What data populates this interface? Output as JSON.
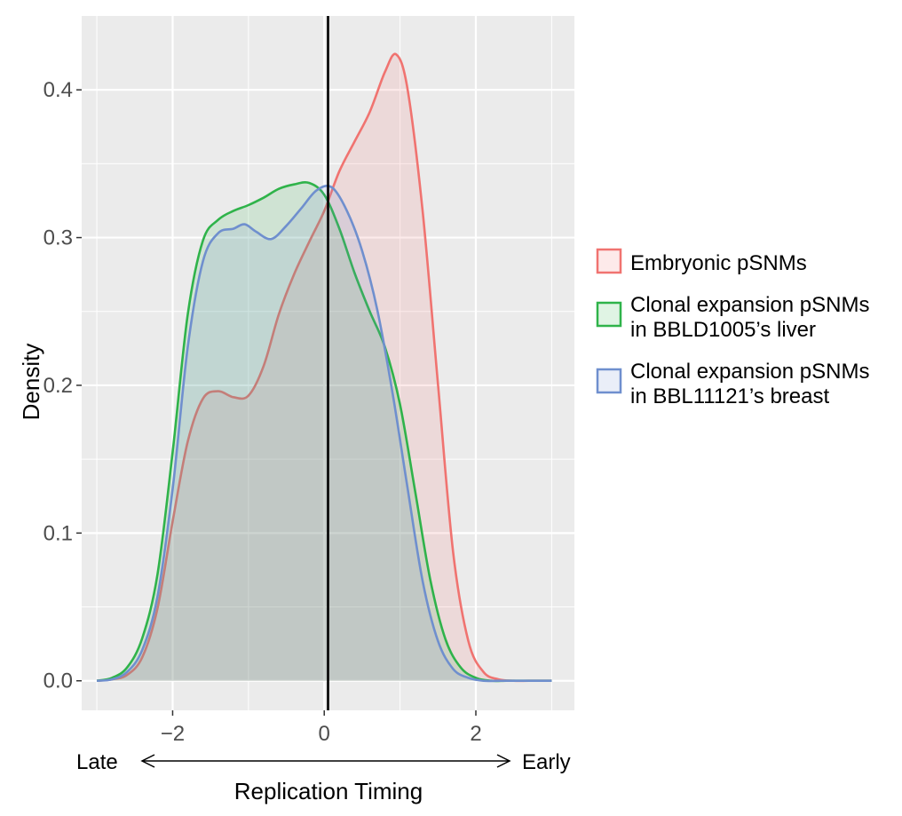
{
  "chart_data": {
    "type": "area",
    "xlabel": "Replication Timing",
    "ylabel": "Density",
    "x_annotation": {
      "left": "Late",
      "right": "Early"
    },
    "xlim": [
      -3.2,
      3.3
    ],
    "ylim": [
      -0.02,
      0.45
    ],
    "x_ticks": [
      -2,
      0,
      2
    ],
    "x_tick_labels": [
      "−2",
      "0",
      "2"
    ],
    "y_ticks": [
      0.0,
      0.1,
      0.2,
      0.3,
      0.4
    ],
    "y_tick_labels": [
      "0.0",
      "0.1",
      "0.2",
      "0.3",
      "0.4"
    ],
    "grid": true,
    "vline_x": 0.05,
    "legend_position": "right",
    "colors": {
      "panel": "#EBEBEB",
      "grid": "#FFFFFF",
      "vline": "#000000"
    },
    "series": [
      {
        "name": "Embryonic pSNMs",
        "color": "#F07370",
        "x": [
          -3.0,
          -2.8,
          -2.6,
          -2.4,
          -2.2,
          -2.0,
          -1.8,
          -1.6,
          -1.4,
          -1.2,
          -1.0,
          -0.8,
          -0.6,
          -0.4,
          -0.2,
          0.0,
          0.2,
          0.4,
          0.6,
          0.8,
          0.95,
          1.1,
          1.3,
          1.5,
          1.7,
          1.9,
          2.1,
          2.3,
          2.5,
          2.7,
          3.0
        ],
        "values": [
          0.0,
          0.001,
          0.004,
          0.016,
          0.049,
          0.108,
          0.162,
          0.191,
          0.196,
          0.192,
          0.193,
          0.213,
          0.248,
          0.275,
          0.297,
          0.318,
          0.345,
          0.365,
          0.385,
          0.412,
          0.424,
          0.4,
          0.317,
          0.201,
          0.087,
          0.027,
          0.006,
          0.001,
          0.0,
          0.0,
          0.0
        ]
      },
      {
        "name": "Clonal expansion pSNMs in BBLD1005’s liver",
        "color": "#2FB34A",
        "x": [
          -3.0,
          -2.8,
          -2.6,
          -2.4,
          -2.2,
          -2.0,
          -1.8,
          -1.6,
          -1.4,
          -1.2,
          -1.0,
          -0.8,
          -0.6,
          -0.4,
          -0.2,
          0.0,
          0.2,
          0.4,
          0.6,
          0.8,
          1.0,
          1.2,
          1.4,
          1.6,
          1.8,
          2.0,
          2.2,
          2.4,
          2.6,
          2.8,
          3.0
        ],
        "values": [
          0.0,
          0.002,
          0.009,
          0.029,
          0.072,
          0.155,
          0.248,
          0.298,
          0.312,
          0.318,
          0.322,
          0.327,
          0.333,
          0.336,
          0.337,
          0.329,
          0.306,
          0.276,
          0.25,
          0.226,
          0.187,
          0.128,
          0.068,
          0.028,
          0.009,
          0.002,
          0.0,
          0.0,
          0.0,
          0.0,
          0.0
        ]
      },
      {
        "name": "Clonal expansion pSNMs in BBL11121’s breast",
        "color": "#6F8FCE",
        "x": [
          -3.0,
          -2.8,
          -2.6,
          -2.4,
          -2.2,
          -2.0,
          -1.8,
          -1.6,
          -1.4,
          -1.2,
          -1.05,
          -0.9,
          -0.7,
          -0.5,
          -0.3,
          -0.1,
          0.1,
          0.3,
          0.5,
          0.7,
          0.9,
          1.1,
          1.3,
          1.5,
          1.7,
          1.9,
          2.1,
          2.3,
          2.5,
          2.7,
          3.0
        ],
        "values": [
          0.0,
          0.001,
          0.006,
          0.021,
          0.057,
          0.13,
          0.226,
          0.284,
          0.303,
          0.306,
          0.309,
          0.304,
          0.299,
          0.308,
          0.32,
          0.332,
          0.334,
          0.318,
          0.291,
          0.251,
          0.195,
          0.13,
          0.067,
          0.027,
          0.008,
          0.002,
          0.0,
          0.0,
          0.0,
          0.0,
          0.0
        ]
      }
    ]
  }
}
